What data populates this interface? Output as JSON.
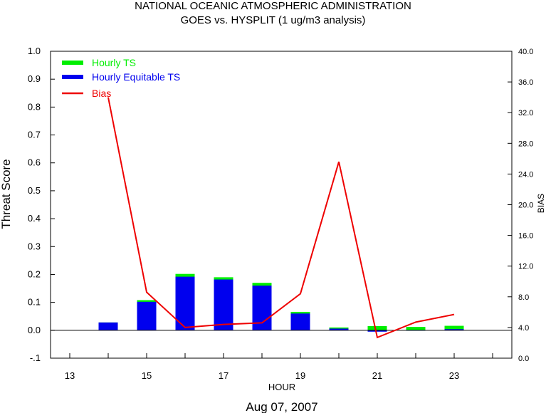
{
  "title_line1": "NATIONAL OCEANIC ATMOSPHERIC ADMINISTRATION",
  "title_line2": "GOES vs. HYSPLIT  (1 ug/m3 analysis)",
  "footer_date": "Aug 07, 2007",
  "chart_data": {
    "type": "bar",
    "title": "GOES vs. HYSPLIT  (1 ug/m3 analysis)",
    "xlabel": "HOUR",
    "ylabel": "Threat Score",
    "y2label": "BIAS",
    "xlim": [
      12.5,
      24.5
    ],
    "ylim": [
      -0.1,
      1.0
    ],
    "y2lim": [
      0.0,
      40.0
    ],
    "x_ticks": [
      "13",
      "15",
      "17",
      "19",
      "21",
      "23"
    ],
    "y_ticks": [
      "-.1",
      "0.0",
      "0.1",
      "0.2",
      "0.3",
      "0.4",
      "0.5",
      "0.6",
      "0.7",
      "0.8",
      "0.9",
      "1.0"
    ],
    "y2_ticks": [
      "0.0",
      "4.0",
      "8.0",
      "12.0",
      "16.0",
      "20.0",
      "24.0",
      "28.0",
      "32.0",
      "36.0",
      "40.0"
    ],
    "grid": false,
    "legend_position": "top-left",
    "x": [
      14,
      15,
      16,
      17,
      18,
      19,
      20,
      21,
      22,
      23
    ],
    "series": [
      {
        "name": "Hourly TS",
        "type": "bar",
        "color": "#00ee00",
        "values": [
          0.028,
          0.108,
          0.202,
          0.19,
          0.17,
          0.066,
          0.01,
          0.015,
          0.012,
          0.016
        ]
      },
      {
        "name": "Hourly Equitable TS",
        "type": "bar",
        "color": "#0000ee",
        "values": [
          0.028,
          0.102,
          0.192,
          0.182,
          0.16,
          0.06,
          0.006,
          -0.005,
          0.001,
          0.004
        ]
      },
      {
        "name": "Bias",
        "type": "line",
        "axis": "right",
        "color": "#ee0000",
        "values": [
          34.0,
          8.6,
          4.0,
          4.4,
          4.6,
          8.4,
          25.6,
          2.7,
          4.7,
          5.7
        ]
      }
    ]
  }
}
